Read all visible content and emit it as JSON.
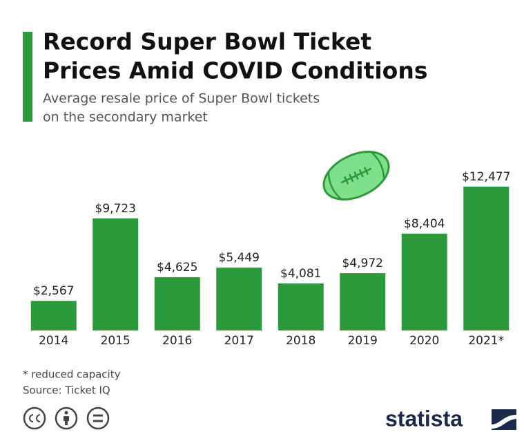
{
  "chart_data": {
    "type": "bar",
    "title_lines": [
      "Record Super Bowl Ticket",
      "Prices Amid COVID Conditions"
    ],
    "subtitle_lines": [
      "Average resale price of Super Bowl tickets",
      "on the secondary market"
    ],
    "categories": [
      "2014",
      "2015",
      "2016",
      "2017",
      "2018",
      "2019",
      "2020",
      "2021*"
    ],
    "values": [
      2567,
      9723,
      4625,
      5449,
      4081,
      4972,
      8404,
      12477
    ],
    "value_labels": [
      "$2,567",
      "$9,723",
      "$4,625",
      "$5,449",
      "$4,081",
      "$4,972",
      "$8,404",
      "$12,477"
    ],
    "color": "#2a9a3a",
    "note": "* reduced capacity",
    "source": "Source: Ticket IQ",
    "brand": "statista"
  }
}
